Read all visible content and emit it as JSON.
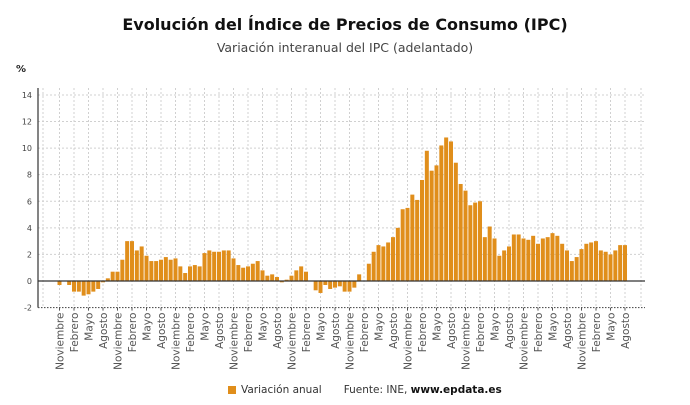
{
  "chart_data": {
    "type": "bar",
    "title": "Evolución del Índice de Precios de Consumo (IPC)",
    "subtitle": "Variación interanual del IPC (adelantado)",
    "ylabel": "%",
    "ylim": [
      -2,
      15
    ],
    "yticks": [
      -2,
      0,
      2,
      4,
      6,
      8,
      10,
      12,
      14
    ],
    "grid": true,
    "legend_position": "bottom",
    "colors": {
      "bar": "#e08e1b",
      "zero_line": "#333333"
    },
    "tick_labels_cycle": [
      "Noviembre",
      "Febrero",
      "Mayo",
      "Agosto"
    ],
    "categories": [
      "2015-11",
      "2015-12",
      "2016-01",
      "2016-02",
      "2016-03",
      "2016-04",
      "2016-05",
      "2016-06",
      "2016-07",
      "2016-08",
      "2016-09",
      "2016-10",
      "2016-11",
      "2016-12",
      "2017-01",
      "2017-02",
      "2017-03",
      "2017-04",
      "2017-05",
      "2017-06",
      "2017-07",
      "2017-08",
      "2017-09",
      "2017-10",
      "2017-11",
      "2017-12",
      "2018-01",
      "2018-02",
      "2018-03",
      "2018-04",
      "2018-05",
      "2018-06",
      "2018-07",
      "2018-08",
      "2018-09",
      "2018-10",
      "2018-11",
      "2018-12",
      "2019-01",
      "2019-02",
      "2019-03",
      "2019-04",
      "2019-05",
      "2019-06",
      "2019-07",
      "2019-08",
      "2019-09",
      "2019-10",
      "2019-11",
      "2019-12",
      "2020-01",
      "2020-02",
      "2020-03",
      "2020-04",
      "2020-05",
      "2020-06",
      "2020-07",
      "2020-08",
      "2020-09",
      "2020-10",
      "2020-11",
      "2020-12",
      "2021-01",
      "2021-02",
      "2021-03",
      "2021-04",
      "2021-05",
      "2021-06",
      "2021-07",
      "2021-08",
      "2021-09",
      "2021-10",
      "2021-11",
      "2021-12",
      "2022-01",
      "2022-02",
      "2022-03",
      "2022-04",
      "2022-05",
      "2022-06",
      "2022-07",
      "2022-08",
      "2022-09",
      "2022-10",
      "2022-11",
      "2022-12",
      "2023-01",
      "2023-02",
      "2023-03",
      "2023-04",
      "2023-05",
      "2023-06",
      "2023-07",
      "2023-08",
      "2023-09",
      "2023-10",
      "2023-11",
      "2023-12",
      "2024-01",
      "2024-02",
      "2024-03",
      "2024-04",
      "2024-05",
      "2024-06",
      "2024-07",
      "2024-08",
      "2024-09",
      "2024-10",
      "2024-11",
      "2024-12",
      "2025-01",
      "2025-02",
      "2025-03",
      "2025-04",
      "2025-05",
      "2025-06",
      "2025-07",
      "2025-08"
    ],
    "series": [
      {
        "name": "Variación anual",
        "values": [
          -0.3,
          0.0,
          -0.3,
          -0.8,
          -0.8,
          -1.1,
          -1.0,
          -0.8,
          -0.6,
          -0.1,
          0.2,
          0.7,
          0.7,
          1.6,
          3.0,
          3.0,
          2.3,
          2.6,
          1.9,
          1.5,
          1.5,
          1.6,
          1.8,
          1.6,
          1.7,
          1.1,
          0.6,
          1.1,
          1.2,
          1.1,
          2.1,
          2.3,
          2.2,
          2.2,
          2.3,
          2.3,
          1.7,
          1.2,
          1.0,
          1.1,
          1.3,
          1.5,
          0.8,
          0.4,
          0.5,
          0.3,
          -0.1,
          0.1,
          0.4,
          0.8,
          1.1,
          0.7,
          0.0,
          -0.7,
          -0.9,
          -0.3,
          -0.6,
          -0.5,
          -0.4,
          -0.8,
          -0.8,
          -0.5,
          0.5,
          0.0,
          1.3,
          2.2,
          2.7,
          2.6,
          2.9,
          3.3,
          4.0,
          5.4,
          5.5,
          6.5,
          6.1,
          7.6,
          9.8,
          8.3,
          8.7,
          10.2,
          10.8,
          10.5,
          8.9,
          7.3,
          6.8,
          5.7,
          5.9,
          6.0,
          3.3,
          4.1,
          3.2,
          1.9,
          2.3,
          2.6,
          3.5,
          3.5,
          3.2,
          3.1,
          3.4,
          2.8,
          3.2,
          3.3,
          3.6,
          3.4,
          2.8,
          2.3,
          1.5,
          1.8,
          2.4,
          2.8,
          2.9,
          3.0,
          2.3,
          2.2,
          2.0,
          2.3,
          2.7,
          2.7
        ]
      }
    ]
  },
  "source": {
    "prefix": "Fuente: INE, ",
    "site": "www.epdata.es"
  }
}
